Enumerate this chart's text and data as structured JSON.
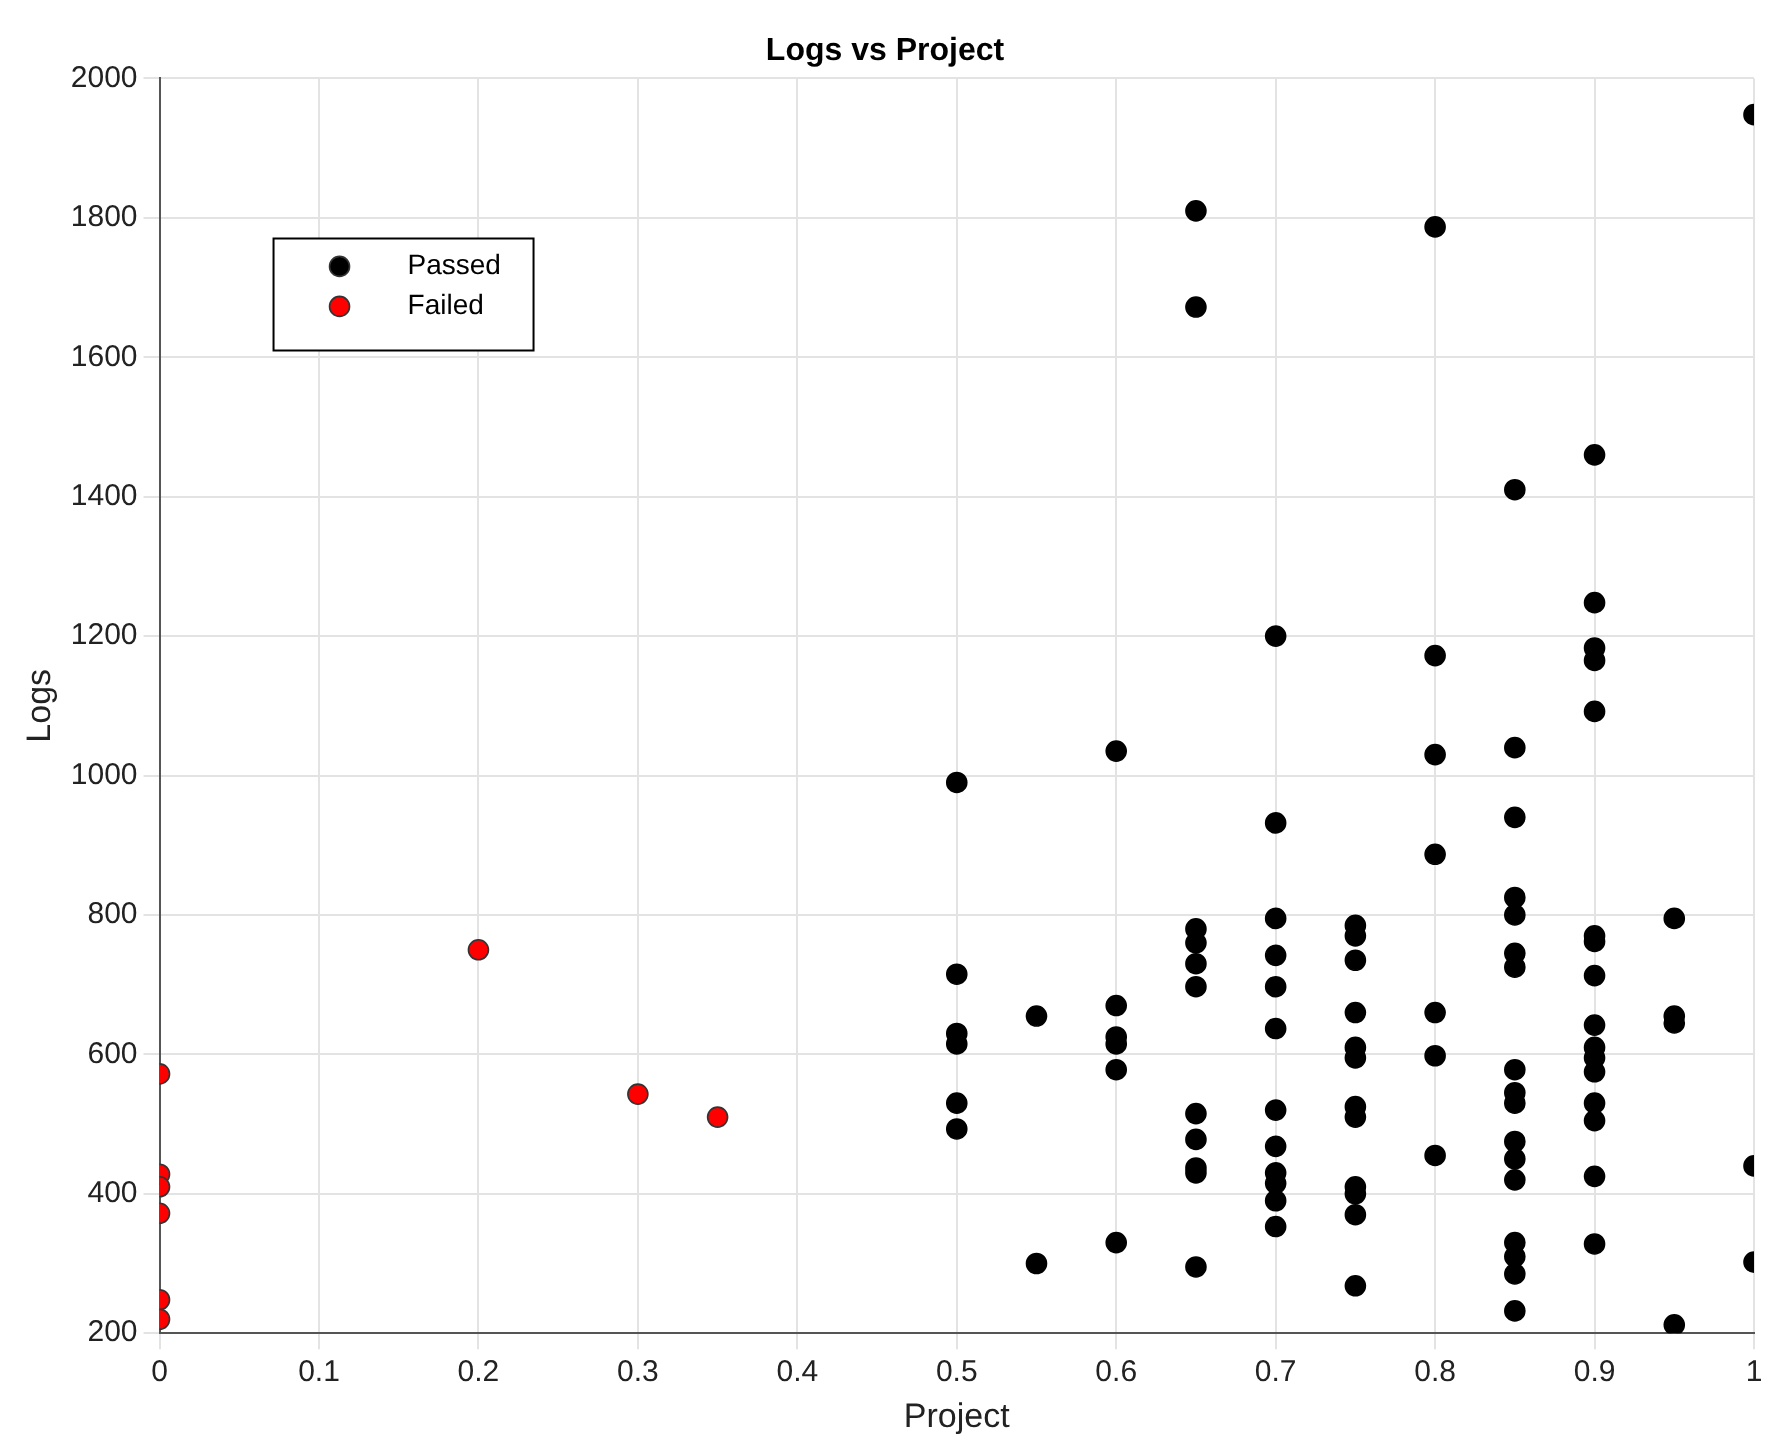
{
  "chart_data": {
    "type": "scatter",
    "title": "Logs vs Project",
    "xlabel": "Project",
    "ylabel": "Logs",
    "xlim": [
      0,
      1
    ],
    "xticks": [
      0,
      0.1,
      0.2,
      0.3,
      0.4,
      0.5,
      0.6,
      0.7,
      0.8,
      0.9,
      1
    ],
    "ylim": [
      200,
      2000
    ],
    "yticks": [
      200,
      400,
      600,
      800,
      1000,
      1200,
      1400,
      1600,
      1800,
      2000
    ],
    "grid": true,
    "legend": "top left",
    "marker": "circle",
    "series": [
      {
        "name": "Passed",
        "color": "#000000",
        "x": [
          0.5,
          0.5,
          0.5,
          0.5,
          0.5,
          0.5,
          0.55,
          0.55,
          0.6,
          0.6,
          0.6,
          0.6,
          0.6,
          0.6,
          0.65,
          0.65,
          0.65,
          0.65,
          0.65,
          0.65,
          0.65,
          0.65,
          0.65,
          0.65,
          0.65,
          0.7,
          0.7,
          0.7,
          0.7,
          0.7,
          0.7,
          0.7,
          0.7,
          0.7,
          0.7,
          0.7,
          0.7,
          0.75,
          0.75,
          0.75,
          0.75,
          0.75,
          0.75,
          0.75,
          0.75,
          0.75,
          0.75,
          0.75,
          0.75,
          0.8,
          0.8,
          0.8,
          0.8,
          0.8,
          0.8,
          0.8,
          0.85,
          0.85,
          0.85,
          0.85,
          0.85,
          0.85,
          0.85,
          0.85,
          0.85,
          0.85,
          0.85,
          0.85,
          0.85,
          0.85,
          0.85,
          0.85,
          0.85,
          0.9,
          0.9,
          0.9,
          0.9,
          0.9,
          0.9,
          0.9,
          0.9,
          0.9,
          0.9,
          0.9,
          0.9,
          0.9,
          0.9,
          0.9,
          0.9,
          0.95,
          0.95,
          0.95,
          0.95,
          1,
          1,
          1
        ],
        "values": [
          990,
          715,
          630,
          615,
          530,
          493,
          655,
          300,
          1035,
          670,
          625,
          615,
          578,
          330,
          1810,
          1672,
          780,
          760,
          730,
          697,
          515,
          478,
          437,
          430,
          295,
          1200,
          932,
          795,
          742,
          697,
          637,
          520,
          468,
          430,
          415,
          390,
          353,
          785,
          770,
          735,
          660,
          610,
          595,
          525,
          510,
          410,
          400,
          370,
          268,
          1787,
          1172,
          1030,
          887,
          660,
          598,
          455,
          1410,
          1040,
          940,
          825,
          800,
          745,
          725,
          578,
          545,
          530,
          475,
          450,
          420,
          330,
          310,
          285,
          232,
          1460,
          1248,
          1183,
          1165,
          1092,
          770,
          762,
          713,
          642,
          610,
          595,
          575,
          530,
          505,
          425,
          328,
          795,
          655,
          645,
          212,
          1948,
          440,
          302
        ]
      },
      {
        "name": "Failed",
        "color": "#ff0000",
        "x": [
          0,
          0,
          0,
          0,
          0,
          0,
          0.2,
          0.3,
          0.35
        ],
        "values": [
          572,
          428,
          410,
          372,
          248,
          220,
          750,
          543,
          510
        ]
      }
    ]
  }
}
